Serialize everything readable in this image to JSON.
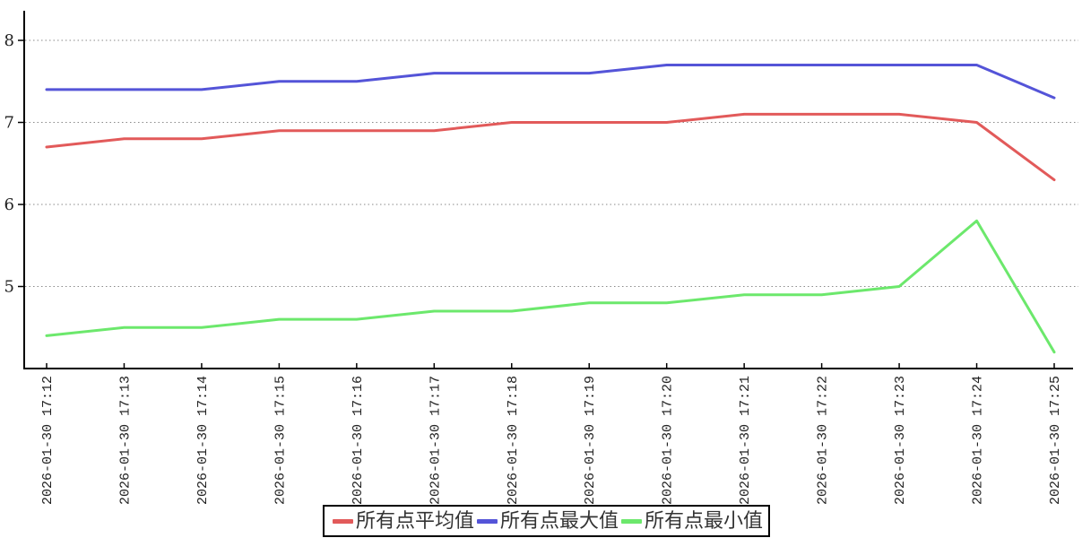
{
  "chart_data": {
    "type": "line",
    "x": [
      "2026-01-30 17:12",
      "2026-01-30 17:13",
      "2026-01-30 17:14",
      "2026-01-30 17:15",
      "2026-01-30 17:16",
      "2026-01-30 17:17",
      "2026-01-30 17:18",
      "2026-01-30 17:19",
      "2026-01-30 17:20",
      "2026-01-30 17:21",
      "2026-01-30 17:22",
      "2026-01-30 17:23",
      "2026-01-30 17:24",
      "2026-01-30 17:25"
    ],
    "series": [
      {
        "key": "average",
        "name": "所有点平均值",
        "color": "#e25a5a",
        "values": [
          6.7,
          6.8,
          6.8,
          6.9,
          6.9,
          6.9,
          7.0,
          7.0,
          7.0,
          7.1,
          7.1,
          7.1,
          7.0,
          6.3
        ]
      },
      {
        "key": "max",
        "name": "所有点最大值",
        "color": "#5454d8",
        "values": [
          7.4,
          7.4,
          7.4,
          7.5,
          7.5,
          7.6,
          7.6,
          7.6,
          7.7,
          7.7,
          7.7,
          7.7,
          7.7,
          7.3
        ]
      },
      {
        "key": "min",
        "name": "所有点最小值",
        "color": "#6ce86c",
        "values": [
          4.4,
          4.5,
          4.5,
          4.6,
          4.6,
          4.7,
          4.7,
          4.8,
          4.8,
          4.9,
          4.9,
          5.0,
          5.8,
          4.2
        ]
      }
    ],
    "title": "",
    "xlabel": "",
    "ylabel": "",
    "y_ticks": [
      5,
      6,
      7,
      8
    ],
    "ylim": [
      4.0,
      8.35
    ],
    "grid": true,
    "grid_color": "#8a8a8a",
    "axis_color": "#000000",
    "tick_label_color": "#222222",
    "legend_position": "bottom-center",
    "legend_border_color": "#000000",
    "legend_text_color": "#333333"
  }
}
